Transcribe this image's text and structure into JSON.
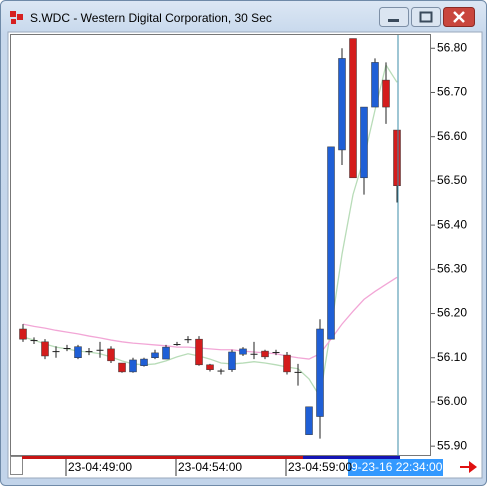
{
  "chart_data": {
    "type": "candlestick",
    "title": "S.WDC - Western Digital Corporation, 30 Sec",
    "categories": [
      null,
      null,
      null,
      null,
      "23-04:49:00",
      null,
      null,
      null,
      null,
      null,
      null,
      null,
      null,
      null,
      "23-04:54:00",
      null,
      null,
      null,
      null,
      null,
      null,
      null,
      null,
      null,
      "23-04:59:00",
      null,
      null,
      null,
      null,
      null,
      null,
      null,
      null,
      null,
      null
    ],
    "open": [
      56.165,
      56.14,
      56.136,
      56.115,
      56.122,
      56.1,
      56.115,
      56.118,
      56.12,
      56.088,
      56.068,
      56.082,
      56.1,
      56.097,
      56.131,
      56.142,
      56.142,
      56.084,
      56.071,
      56.073,
      56.108,
      56.109,
      56.115,
      56.113,
      56.106,
      56.068,
      55.926,
      55.967,
      56.142,
      56.57,
      56.822,
      56.507,
      56.667,
      56.728,
      56.615
    ],
    "high": [
      56.176,
      56.146,
      56.142,
      56.126,
      56.129,
      56.129,
      56.122,
      56.136,
      56.126,
      56.088,
      56.1,
      56.1,
      56.118,
      56.129,
      56.136,
      56.149,
      56.149,
      56.086,
      56.075,
      56.118,
      56.124,
      56.136,
      56.118,
      56.118,
      56.113,
      56.086,
      55.989,
      56.187,
      56.577,
      56.8,
      56.822,
      56.667,
      56.777,
      56.768,
      56.615
    ],
    "low": [
      56.136,
      56.131,
      56.097,
      56.1,
      56.115,
      56.097,
      56.106,
      56.1,
      56.088,
      56.066,
      56.066,
      56.08,
      56.097,
      56.097,
      56.127,
      56.133,
      56.082,
      56.069,
      56.062,
      56.068,
      56.104,
      56.097,
      56.097,
      56.106,
      56.062,
      56.037,
      55.926,
      55.917,
      56.142,
      56.536,
      56.507,
      56.469,
      56.667,
      56.629,
      56.451
    ],
    "close": [
      56.142,
      56.139,
      56.104,
      56.114,
      56.121,
      56.125,
      56.114,
      56.117,
      56.093,
      56.068,
      56.095,
      56.097,
      56.111,
      56.124,
      56.13,
      56.141,
      56.084,
      56.073,
      56.07,
      56.113,
      56.12,
      56.108,
      56.102,
      56.112,
      56.068,
      56.067,
      55.989,
      56.165,
      56.577,
      56.777,
      56.507,
      56.667,
      56.768,
      56.667,
      56.489
    ],
    "up_color": "#1f5fd6",
    "down_color": "#d41c1c",
    "overlays": [
      {
        "color": "#b8dcb8",
        "values": [
          56.147,
          56.14,
          56.131,
          56.124,
          56.12,
          56.115,
          56.113,
          56.109,
          56.102,
          56.093,
          56.086,
          56.084,
          56.086,
          56.093,
          56.102,
          56.109,
          56.104,
          56.097,
          56.088,
          56.086,
          56.088,
          56.091,
          56.088,
          56.084,
          56.079,
          56.075,
          56.052,
          56.012,
          56.165,
          56.334,
          56.469,
          56.552,
          56.66,
          56.762,
          56.723
        ]
      },
      {
        "color": "#f2a6d6",
        "values": [
          56.176,
          56.171,
          56.167,
          56.162,
          56.158,
          56.154,
          56.149,
          56.145,
          56.14,
          56.136,
          56.133,
          56.131,
          56.129,
          56.127,
          56.124,
          56.124,
          56.122,
          56.12,
          56.118,
          56.118,
          56.115,
          56.113,
          56.111,
          56.109,
          56.104,
          56.1,
          56.097,
          56.109,
          56.142,
          56.176,
          56.205,
          56.232,
          56.25,
          56.266,
          56.282
        ]
      }
    ],
    "ylim": [
      55.88,
      56.83
    ],
    "yticks": [
      {
        "value": 55.9,
        "label": "55.90"
      },
      {
        "value": 56.0,
        "label": "56.00"
      },
      {
        "value": 56.1,
        "label": "56.10"
      },
      {
        "value": 56.2,
        "label": "56.20"
      },
      {
        "value": 56.3,
        "label": "56.30"
      },
      {
        "value": 56.4,
        "label": "56.40"
      },
      {
        "value": 56.5,
        "label": "56.50"
      },
      {
        "value": 56.6,
        "label": "56.60"
      },
      {
        "value": 56.7,
        "label": "56.70"
      },
      {
        "value": 56.8,
        "label": "56.80"
      }
    ],
    "cursor_label": "9-23-16 22:34:00"
  }
}
